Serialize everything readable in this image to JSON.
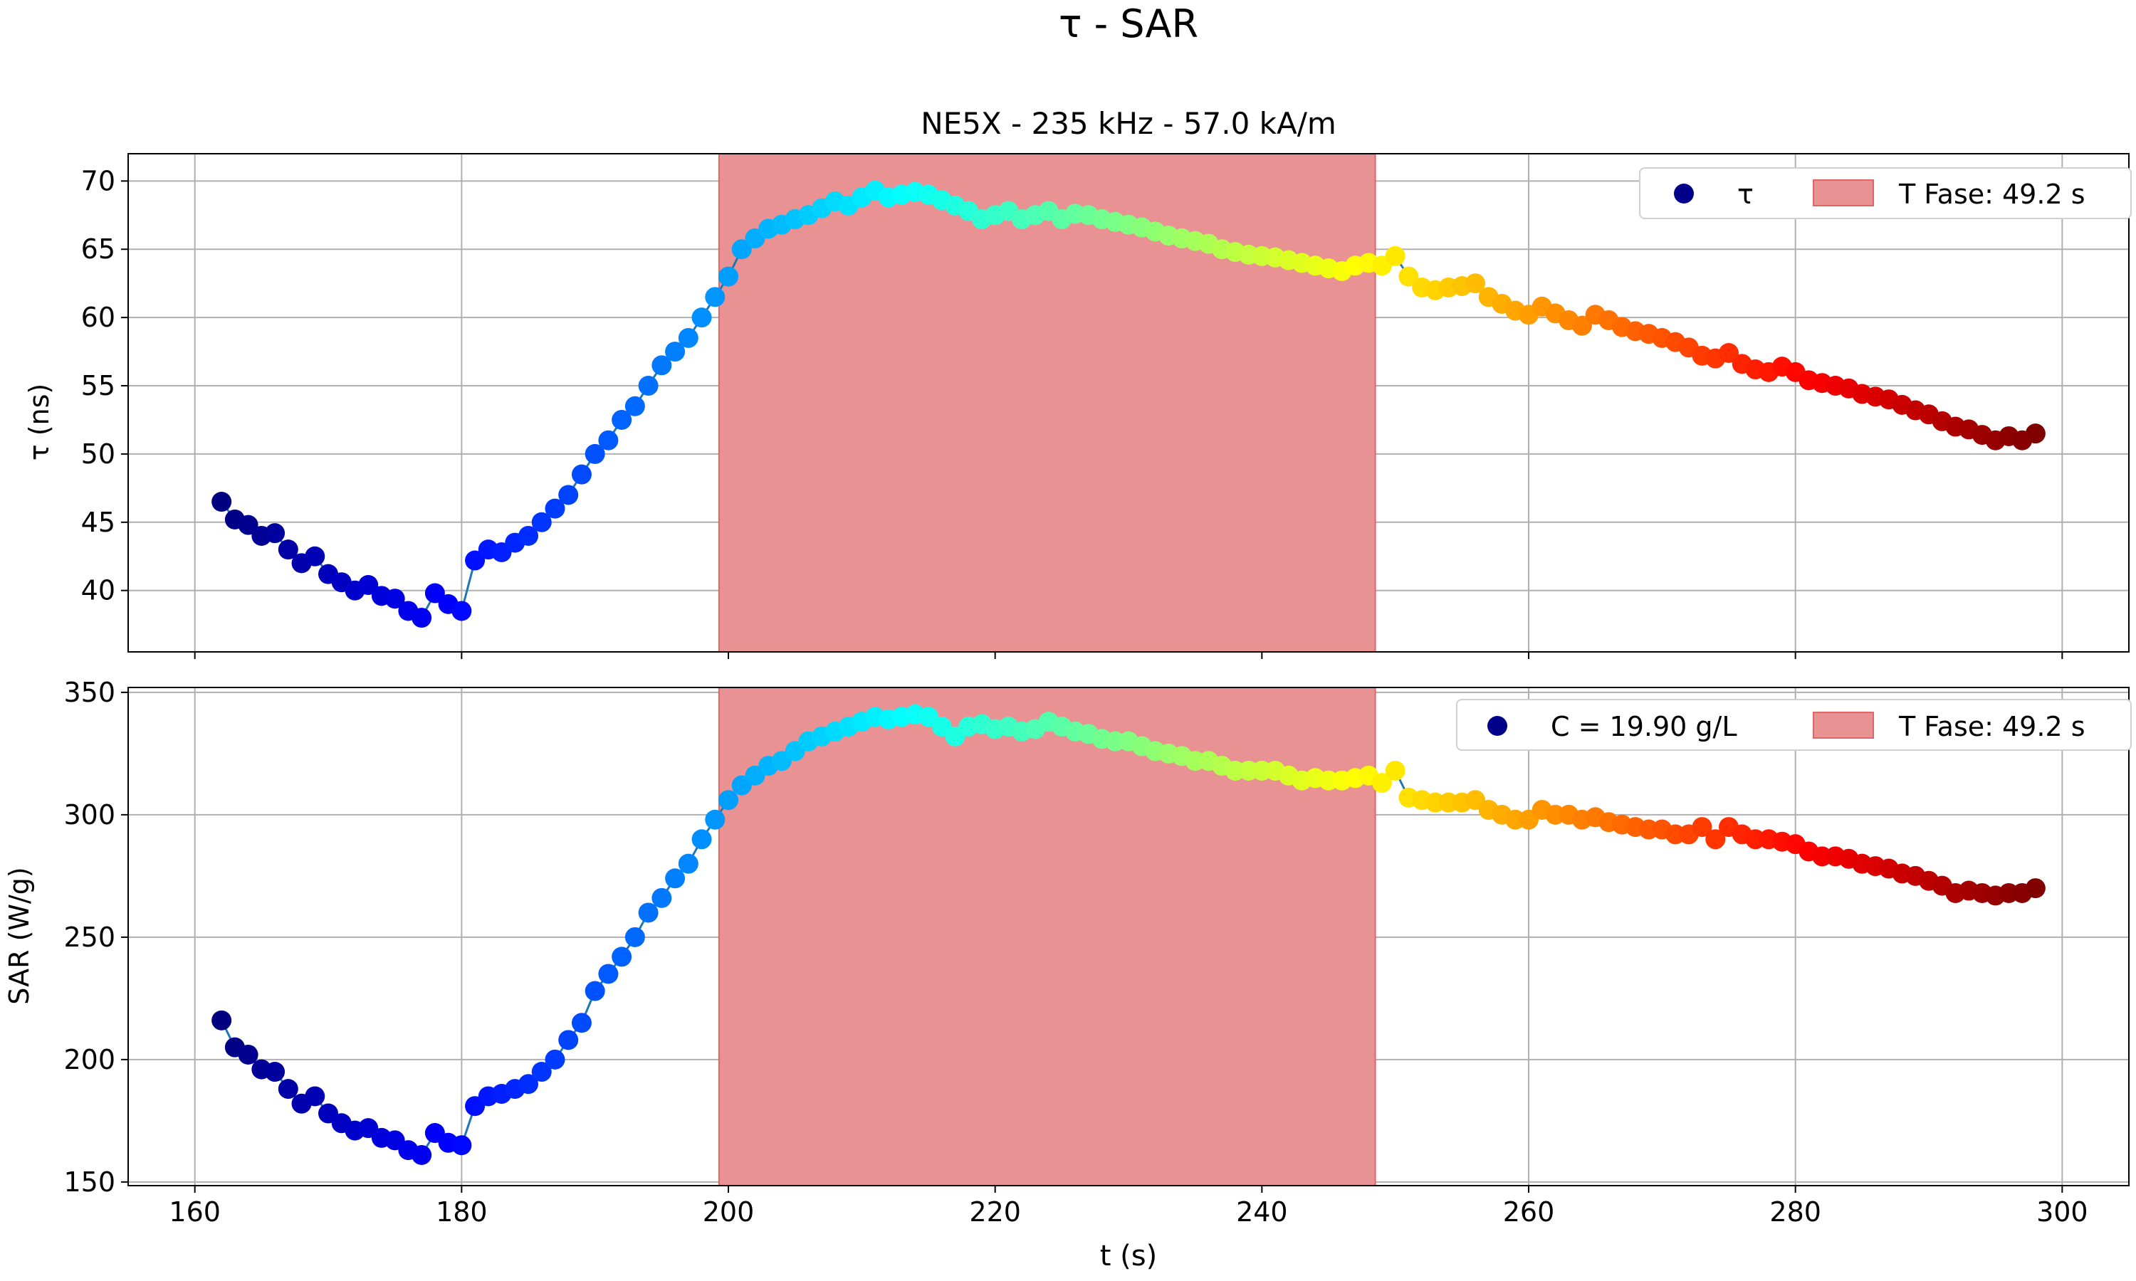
{
  "figure": {
    "suptitle": "τ - SAR",
    "xlabel": "t (s)"
  },
  "chart_data": [
    {
      "type": "scatter",
      "title": "NE5X - 235 kHz - 57.0 kA/m",
      "xlabel": "",
      "ylabel": "τ (ns)",
      "xlim": [
        155,
        305
      ],
      "ylim": [
        35.5,
        72
      ],
      "xticks": [
        160,
        180,
        200,
        220,
        240,
        260,
        280,
        300
      ],
      "xtick_labels": [
        "160",
        "180",
        "200",
        "220",
        "240",
        "260",
        "280",
        "300"
      ],
      "yticks": [
        40,
        45,
        50,
        55,
        60,
        65,
        70
      ],
      "ytick_labels": [
        "40",
        "45",
        "50",
        "55",
        "60",
        "65",
        "70"
      ],
      "grid": true,
      "legend_location": "top-right",
      "legend": [
        {
          "label": "τ",
          "kind": "marker",
          "color": "#00008b"
        },
        {
          "label": "T Fase: 49.2 s",
          "kind": "patch",
          "color": "#e89294"
        }
      ],
      "span": {
        "x0": 199.3,
        "x1": 248.5,
        "color": "#e89294",
        "edge": "#e06666"
      },
      "line_color": "#1f77b4",
      "colormap": "jet",
      "x": [
        162.0,
        163.0,
        164.0,
        165.0,
        166.0,
        167.0,
        168.0,
        169.0,
        170.0,
        171.0,
        172.0,
        173.0,
        174.0,
        175.0,
        176.0,
        177.0,
        178.0,
        179.0,
        180.0,
        181.0,
        182.0,
        183.0,
        184.0,
        185.0,
        186.0,
        187.0,
        188.0,
        189.0,
        190.0,
        191.0,
        192.0,
        193.0,
        194.0,
        195.0,
        196.0,
        197.0,
        198.0,
        199.0,
        200.0,
        201.0,
        202.0,
        203.0,
        204.0,
        205.0,
        206.0,
        207.0,
        208.0,
        209.0,
        210.0,
        211.0,
        212.0,
        213.0,
        214.0,
        215.0,
        216.0,
        217.0,
        218.0,
        219.0,
        220.0,
        221.0,
        222.0,
        223.0,
        224.0,
        225.0,
        226.0,
        227.0,
        228.0,
        229.0,
        230.0,
        231.0,
        232.0,
        233.0,
        234.0,
        235.0,
        236.0,
        237.0,
        238.0,
        239.0,
        240.0,
        241.0,
        242.0,
        243.0,
        244.0,
        245.0,
        246.0,
        247.0,
        248.0,
        249.0,
        250.0,
        251.0,
        252.0,
        253.0,
        254.0,
        255.0,
        256.0,
        257.0,
        258.0,
        259.0,
        260.0,
        261.0,
        262.0,
        263.0,
        264.0,
        265.0,
        266.0,
        267.0,
        268.0,
        269.0,
        270.0,
        271.0,
        272.0,
        273.0,
        274.0,
        275.0,
        276.0,
        277.0,
        278.0,
        279.0,
        280.0,
        281.0,
        282.0,
        283.0,
        284.0,
        285.0,
        286.0,
        287.0,
        288.0,
        289.0,
        290.0,
        291.0,
        292.0,
        293.0,
        294.0,
        295.0,
        296.0,
        297.0,
        298.0
      ],
      "y": [
        46.5,
        45.2,
        44.8,
        44.0,
        44.2,
        43.0,
        42.0,
        42.5,
        41.2,
        40.6,
        40.0,
        40.4,
        39.6,
        39.4,
        38.5,
        38.0,
        39.8,
        39.0,
        38.5,
        42.2,
        43.0,
        42.8,
        43.5,
        44.0,
        45.0,
        46.0,
        47.0,
        48.5,
        50.0,
        51.0,
        52.5,
        53.5,
        55.0,
        56.5,
        57.5,
        58.5,
        60.0,
        61.5,
        63.0,
        65.0,
        65.8,
        66.5,
        66.8,
        67.2,
        67.5,
        68.0,
        68.5,
        68.2,
        68.8,
        69.3,
        68.8,
        69.0,
        69.2,
        69.0,
        68.6,
        68.2,
        67.8,
        67.2,
        67.5,
        67.8,
        67.2,
        67.5,
        67.8,
        67.2,
        67.6,
        67.5,
        67.2,
        67.0,
        66.8,
        66.6,
        66.3,
        66.0,
        65.8,
        65.6,
        65.4,
        65.0,
        64.8,
        64.6,
        64.5,
        64.4,
        64.2,
        64.0,
        63.8,
        63.6,
        63.4,
        63.8,
        64.0,
        63.8,
        64.5,
        63.0,
        62.2,
        62.0,
        62.2,
        62.3,
        62.5,
        61.5,
        61.0,
        60.5,
        60.2,
        60.8,
        60.3,
        59.8,
        59.4,
        60.2,
        59.8,
        59.3,
        59.0,
        58.8,
        58.5,
        58.2,
        57.8,
        57.2,
        57.0,
        57.4,
        56.6,
        56.2,
        56.0,
        56.4,
        56.0,
        55.4,
        55.2,
        55.0,
        54.8,
        54.4,
        54.2,
        54.0,
        53.6,
        53.2,
        52.9,
        52.4,
        52.0,
        51.8,
        51.4,
        51.0,
        51.3,
        51.0,
        51.5
      ]
    },
    {
      "type": "scatter",
      "title": "",
      "xlabel": "t (s)",
      "ylabel": "SAR (W/g)",
      "xlim": [
        155,
        305
      ],
      "ylim": [
        148.5,
        352
      ],
      "xticks": [
        160,
        180,
        200,
        220,
        240,
        260,
        280,
        300
      ],
      "xtick_labels": [
        "160",
        "180",
        "200",
        "220",
        "240",
        "260",
        "280",
        "300"
      ],
      "yticks": [
        150,
        200,
        250,
        300,
        350
      ],
      "ytick_labels": [
        "150",
        "200",
        "250",
        "300",
        "350"
      ],
      "grid": true,
      "legend_location": "top-right",
      "legend": [
        {
          "label": "C = 19.90 g/L",
          "kind": "marker",
          "color": "#00008b"
        },
        {
          "label": "T Fase: 49.2 s",
          "kind": "patch",
          "color": "#e89294"
        }
      ],
      "span": {
        "x0": 199.3,
        "x1": 248.5,
        "color": "#e89294",
        "edge": "#e06666"
      },
      "line_color": "#1f77b4",
      "colormap": "jet",
      "x": [
        162.0,
        163.0,
        164.0,
        165.0,
        166.0,
        167.0,
        168.0,
        169.0,
        170.0,
        171.0,
        172.0,
        173.0,
        174.0,
        175.0,
        176.0,
        177.0,
        178.0,
        179.0,
        180.0,
        181.0,
        182.0,
        183.0,
        184.0,
        185.0,
        186.0,
        187.0,
        188.0,
        189.0,
        190.0,
        191.0,
        192.0,
        193.0,
        194.0,
        195.0,
        196.0,
        197.0,
        198.0,
        199.0,
        200.0,
        201.0,
        202.0,
        203.0,
        204.0,
        205.0,
        206.0,
        207.0,
        208.0,
        209.0,
        210.0,
        211.0,
        212.0,
        213.0,
        214.0,
        215.0,
        216.0,
        217.0,
        218.0,
        219.0,
        220.0,
        221.0,
        222.0,
        223.0,
        224.0,
        225.0,
        226.0,
        227.0,
        228.0,
        229.0,
        230.0,
        231.0,
        232.0,
        233.0,
        234.0,
        235.0,
        236.0,
        237.0,
        238.0,
        239.0,
        240.0,
        241.0,
        242.0,
        243.0,
        244.0,
        245.0,
        246.0,
        247.0,
        248.0,
        249.0,
        250.0,
        251.0,
        252.0,
        253.0,
        254.0,
        255.0,
        256.0,
        257.0,
        258.0,
        259.0,
        260.0,
        261.0,
        262.0,
        263.0,
        264.0,
        265.0,
        266.0,
        267.0,
        268.0,
        269.0,
        270.0,
        271.0,
        272.0,
        273.0,
        274.0,
        275.0,
        276.0,
        277.0,
        278.0,
        279.0,
        280.0,
        281.0,
        282.0,
        283.0,
        284.0,
        285.0,
        286.0,
        287.0,
        288.0,
        289.0,
        290.0,
        291.0,
        292.0,
        293.0,
        294.0,
        295.0,
        296.0,
        297.0,
        298.0
      ],
      "y": [
        216,
        205,
        202,
        196,
        195,
        188,
        182,
        185,
        178,
        174,
        171,
        172,
        168,
        167,
        163,
        161,
        170,
        166,
        165,
        181,
        185,
        186,
        188,
        190,
        195,
        200,
        208,
        215,
        228,
        235,
        242,
        250,
        260,
        266,
        274,
        280,
        290,
        298,
        306,
        312,
        316,
        320,
        322,
        326,
        330,
        332,
        334,
        336,
        338,
        340,
        339,
        340,
        341,
        340,
        336,
        332,
        336,
        337,
        335,
        336,
        334,
        335,
        338,
        336,
        334,
        333,
        331,
        330,
        330,
        328,
        326,
        325,
        324,
        322,
        322,
        320,
        318,
        318,
        318,
        318,
        316,
        314,
        315,
        314,
        314,
        315,
        316,
        313,
        318,
        307,
        306,
        305,
        305,
        305,
        306,
        302,
        300,
        298,
        298,
        302,
        300,
        300,
        298,
        299,
        297,
        296,
        295,
        294,
        294,
        292,
        292,
        295,
        290,
        295,
        292,
        290,
        290,
        289,
        288,
        285,
        283,
        283,
        282,
        280,
        279,
        278,
        276,
        275,
        273,
        271,
        268,
        269,
        268,
        267,
        268,
        268,
        270
      ]
    }
  ]
}
